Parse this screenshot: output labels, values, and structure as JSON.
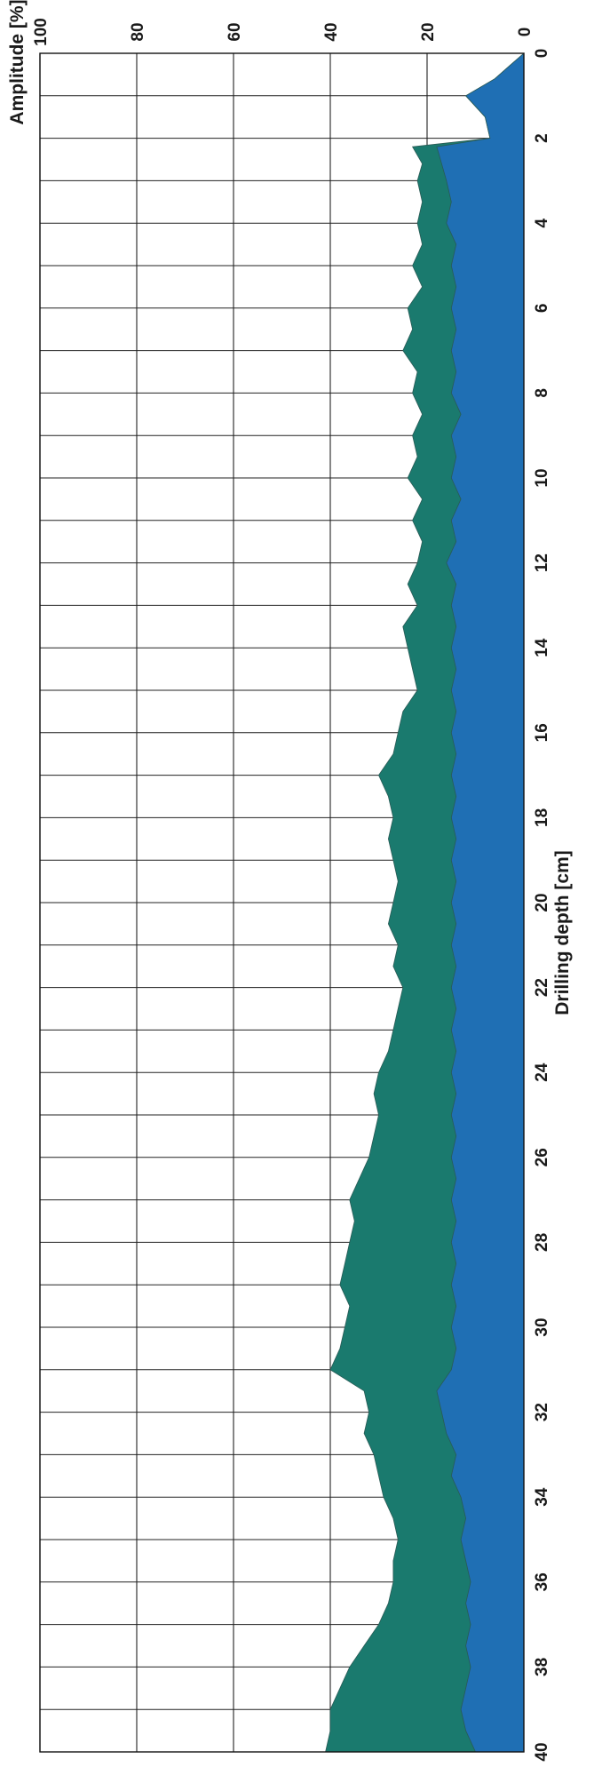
{
  "chart_data": {
    "type": "area",
    "title": "",
    "ylabel": "Amplitude [%]",
    "xlabel": "Drilling depth [cm]",
    "xlim": [
      0,
      40
    ],
    "ylim": [
      0,
      100
    ],
    "x_ticks": [
      "0",
      "2",
      "4",
      "6",
      "8",
      "10",
      "12",
      "14",
      "16",
      "18",
      "20",
      "22",
      "24",
      "26",
      "28",
      "30",
      "32",
      "34",
      "36",
      "38",
      "40"
    ],
    "y_ticks": [
      "0",
      "20",
      "40",
      "60",
      "80",
      "100"
    ],
    "grid": true,
    "legend": "none",
    "series": [
      {
        "color": "#1a7a6e",
        "x": [
          0,
          0.3,
          0.6,
          1.0,
          1.5,
          2.0,
          2.2,
          2.6,
          3.0,
          3.5,
          4.0,
          4.5,
          5.0,
          5.5,
          6.0,
          6.5,
          7.0,
          7.5,
          8.0,
          8.5,
          9.0,
          9.5,
          10.0,
          10.5,
          11.0,
          11.5,
          12.0,
          12.5,
          13.0,
          13.5,
          14.0,
          14.5,
          15.0,
          15.5,
          16.0,
          16.5,
          17.0,
          17.5,
          18.0,
          18.5,
          19.0,
          19.5,
          20.0,
          20.5,
          21.0,
          21.5,
          22.0,
          22.5,
          23.0,
          23.5,
          24.0,
          24.5,
          25.0,
          25.5,
          26.0,
          26.5,
          27.0,
          27.5,
          28.0,
          28.5,
          29.0,
          29.5,
          30.0,
          30.5,
          31.0,
          31.5,
          32.0,
          32.5,
          33.0,
          33.5,
          34.0,
          34.5,
          35.0,
          35.5,
          36.0,
          36.5,
          37.0,
          37.5,
          38.0,
          38.5,
          39.0,
          39.5,
          40.0
        ],
        "values": [
          0,
          3,
          6,
          12,
          8,
          7,
          23,
          21,
          22,
          21,
          22,
          21,
          23,
          21,
          24,
          23,
          25,
          22,
          23,
          21,
          23,
          22,
          24,
          21,
          23,
          21,
          22,
          24,
          22,
          25,
          24,
          23,
          22,
          25,
          26,
          27,
          30,
          28,
          27,
          28,
          27,
          26,
          27,
          28,
          26,
          27,
          25,
          26,
          27,
          28,
          30,
          31,
          30,
          31,
          32,
          34,
          36,
          35,
          36,
          37,
          38,
          36,
          37,
          38,
          40,
          33,
          32,
          33,
          31,
          30,
          29,
          27,
          26,
          27,
          27,
          28,
          30,
          33,
          36,
          38,
          40,
          40,
          41
        ]
      },
      {
        "color": "#1f6fb4",
        "x": [
          0,
          0.3,
          0.6,
          1.0,
          1.5,
          2.0,
          2.2,
          2.6,
          3.0,
          3.5,
          4.0,
          4.5,
          5.0,
          5.5,
          6.0,
          6.5,
          7.0,
          7.5,
          8.0,
          8.5,
          9.0,
          9.5,
          10.0,
          10.5,
          11.0,
          11.5,
          12.0,
          12.5,
          13.0,
          13.5,
          14.0,
          14.5,
          15.0,
          15.5,
          16.0,
          16.5,
          17.0,
          17.5,
          18.0,
          18.5,
          19.0,
          19.5,
          20.0,
          20.5,
          21.0,
          21.5,
          22.0,
          22.5,
          23.0,
          23.5,
          24.0,
          24.5,
          25.0,
          25.5,
          26.0,
          26.5,
          27.0,
          27.5,
          28.0,
          28.5,
          29.0,
          29.5,
          30.0,
          30.5,
          31.0,
          31.5,
          32.0,
          32.5,
          33.0,
          33.5,
          34.0,
          34.5,
          35.0,
          35.5,
          36.0,
          36.5,
          37.0,
          37.5,
          38.0,
          38.5,
          39.0,
          39.5,
          40.0
        ],
        "values": [
          0,
          3,
          6,
          12,
          8,
          7,
          18,
          17,
          16,
          15,
          16,
          14,
          15,
          14,
          15,
          14,
          15,
          14,
          15,
          13,
          15,
          14,
          15,
          13,
          15,
          14,
          16,
          14,
          15,
          14,
          15,
          14,
          15,
          14,
          15,
          14,
          15,
          14,
          15,
          14,
          15,
          14,
          15,
          14,
          15,
          14,
          15,
          14,
          15,
          14,
          15,
          14,
          15,
          14,
          15,
          14,
          15,
          14,
          15,
          14,
          15,
          14,
          15,
          14,
          15,
          18,
          17,
          16,
          14,
          15,
          13,
          12,
          13,
          12,
          11,
          12,
          11,
          12,
          11,
          12,
          13,
          12,
          10
        ]
      }
    ]
  }
}
